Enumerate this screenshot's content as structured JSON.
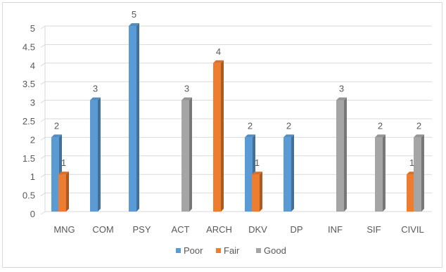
{
  "chart_data": {
    "type": "bar",
    "style": "3d-clustered-column",
    "categories": [
      "MNG",
      "COM",
      "PSY",
      "ACT",
      "ARCH",
      "DKV",
      "DP",
      "INF",
      "SIF",
      "CIVIL"
    ],
    "series": [
      {
        "name": "Poor",
        "color": "#5B9BD5",
        "values": [
          2,
          3,
          5,
          null,
          null,
          2,
          2,
          null,
          null,
          null
        ]
      },
      {
        "name": "Fair",
        "color": "#ED7D31",
        "values": [
          1,
          null,
          null,
          null,
          4,
          1,
          null,
          null,
          null,
          1
        ]
      },
      {
        "name": "Good",
        "color": "#A5A5A5",
        "values": [
          null,
          null,
          null,
          3,
          null,
          null,
          null,
          3,
          2,
          2
        ]
      }
    ],
    "y_ticks": [
      "0",
      "0.5",
      "1",
      "1.5",
      "2",
      "2.5",
      "3",
      "3.5",
      "4",
      "4.5",
      "5"
    ],
    "ylim": [
      0,
      5
    ],
    "grid": true,
    "legend_position": "bottom"
  }
}
